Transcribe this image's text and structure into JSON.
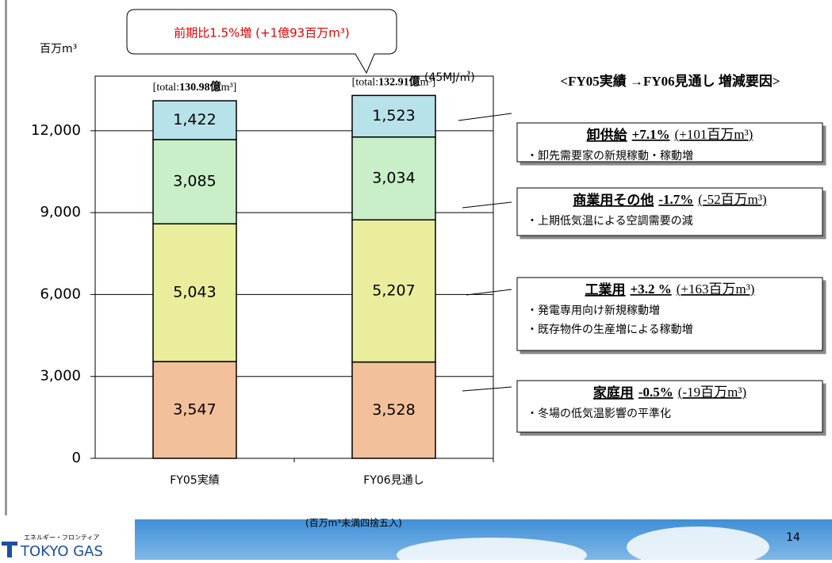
{
  "chart_data": {
    "type": "stacked-bar",
    "unit_label": "百万m³",
    "energy_note": "(45MJ/㎥)",
    "callout": "前期比1.5%増 (+1億93百万m³)",
    "factor_header": "<FY05実績 →FY06見通し  増減要因>",
    "footnote": "(百万m³未満四捨五入)",
    "categories": [
      "FY05実績",
      "FY06見通し"
    ],
    "totals": [
      {
        "prefix": "[total:",
        "value": "130.98億",
        "suffix": "m³]"
      },
      {
        "prefix": "[total:",
        "value": "132.91億",
        "suffix": "m³]"
      }
    ],
    "ylim": [
      0,
      14000
    ],
    "yticks": [
      0,
      {
        "value": 3000,
        "label": "3,000"
      },
      {
        "value": 6000,
        "label": "6,000"
      },
      {
        "value": 9000,
        "label": "9,000"
      },
      {
        "value": 12000,
        "label": "12,000"
      }
    ],
    "grid": true,
    "series": [
      {
        "name": "家庭用",
        "color": "#f2c09a",
        "values": [
          3547,
          3528
        ],
        "value_labels": [
          "3,547",
          "3,528"
        ],
        "change": "-0.5%",
        "amount": "(-19百万m³)",
        "notes": [
          "・冬場の低気温影響の平準化"
        ]
      },
      {
        "name": "工業用",
        "color": "#eaee9c",
        "values": [
          5043,
          5207
        ],
        "value_labels": [
          "5,043",
          "5,207"
        ],
        "change": "+3.2 %",
        "amount": "(+163百万m³)",
        "notes": [
          "・発電専用向け新規稼動増",
          "・既存物件の生産増による稼動増"
        ]
      },
      {
        "name": "商業用その他",
        "color": "#c8efc8",
        "values": [
          3085,
          3034
        ],
        "value_labels": [
          "3,085",
          "3,034"
        ],
        "change": "-1.7%",
        "amount": "(-52百万m³)",
        "notes": [
          "・上期低気温による空調需要の減"
        ]
      },
      {
        "name": "卸供給",
        "color": "#b8e2ea",
        "values": [
          1422,
          1523
        ],
        "value_labels": [
          "1,422",
          "1,523"
        ],
        "change": "+7.1%",
        "amount": "(+101百万m³)",
        "notes": [
          "・卸先需要家の新規稼動・稼動増"
        ]
      }
    ]
  },
  "footer": {
    "page": "14",
    "logo_tagline": "エネルギー・フロンティア",
    "logo": "TOKYO GAS"
  }
}
